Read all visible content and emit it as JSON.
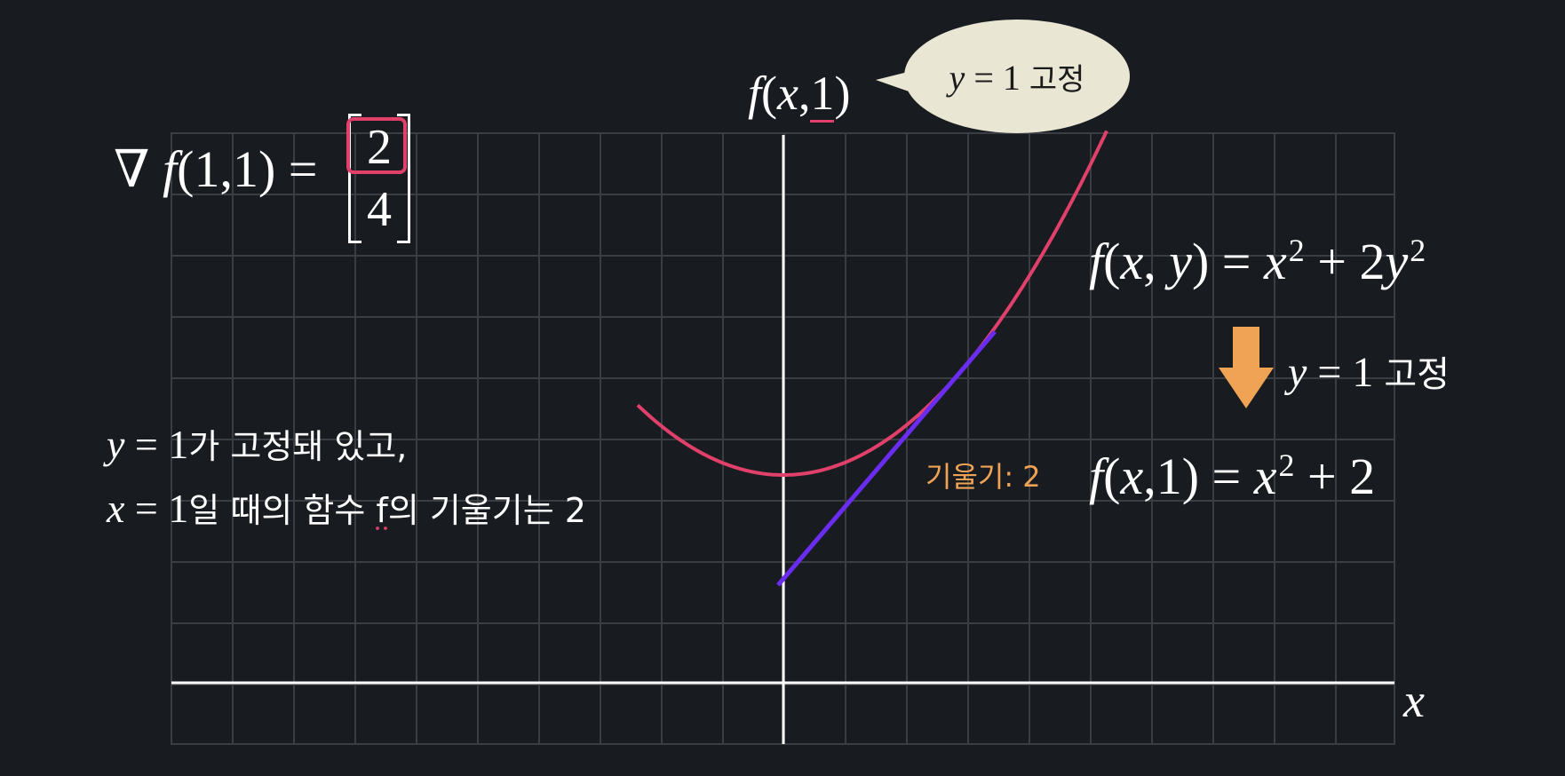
{
  "gradient": {
    "label_prefix": "∇",
    "func": "f",
    "args": "(1,1) =",
    "components": [
      "2",
      "4"
    ],
    "highlight_color": "#e0406a"
  },
  "curve_label": {
    "func": "f",
    "open": "(",
    "var": "x",
    "sep": ",",
    "fixed": "1",
    "close": ")"
  },
  "bubble": {
    "var": "y",
    "eq": " = 1 ",
    "word": "고정"
  },
  "equation_full": {
    "func": "f",
    "args_open": "(",
    "x": "x",
    "comma": ", ",
    "y": "y",
    "args_close": ")",
    "eq": " = ",
    "term1": "x",
    "exp1": "2",
    "plus": " + 2",
    "term2": "y",
    "exp2": "2"
  },
  "arrow_label": {
    "var": "y",
    "eq": " = 1 ",
    "word": "고정"
  },
  "equation_fixed": {
    "func": "f",
    "args": "(",
    "x": "x",
    "rest": ",1)",
    "eq": " = ",
    "term1": "x",
    "exp1": "2",
    "plus": " + 2"
  },
  "slope_label": "기울기: 2",
  "explanation": {
    "line1_var": "y",
    "line1_eq": " = 1",
    "line1_text": "가 고정돼 있고,",
    "line2_var": "x",
    "line2_eq": " = 1",
    "line2_text_a": "일 때의 함수 ",
    "line2_f": "f",
    "line2_text_b": "의 기울기는 2"
  },
  "axis_x_label": "x",
  "colors": {
    "background": "#181b20",
    "grid": "#3a3d42",
    "axis": "#ffffff",
    "parabola": "#e0406a",
    "tangent": "#6a2cf0",
    "accent_orange": "#f0a355",
    "bubble": "#e9e6d3"
  },
  "chart_data": {
    "type": "line",
    "x": [
      -1,
      -0.75,
      -0.5,
      -0.25,
      0,
      0.25,
      0.5,
      0.75,
      1,
      1.25,
      1.5,
      1.75,
      2
    ],
    "series": [
      {
        "values": [
          3,
          2.5625,
          2.25,
          2.0625,
          2,
          2.0625,
          2.25,
          2.5625,
          3,
          3.5625,
          4.25,
          5.0625,
          6
        ]
      },
      {
        "values": [
          -1,
          -0.5,
          0,
          0.5,
          1,
          1.5,
          2,
          2.5,
          3,
          3.5,
          4,
          4.5,
          5
        ]
      }
    ],
    "tangent_point": [
      1,
      3
    ],
    "slope": 2,
    "grid": true
  }
}
